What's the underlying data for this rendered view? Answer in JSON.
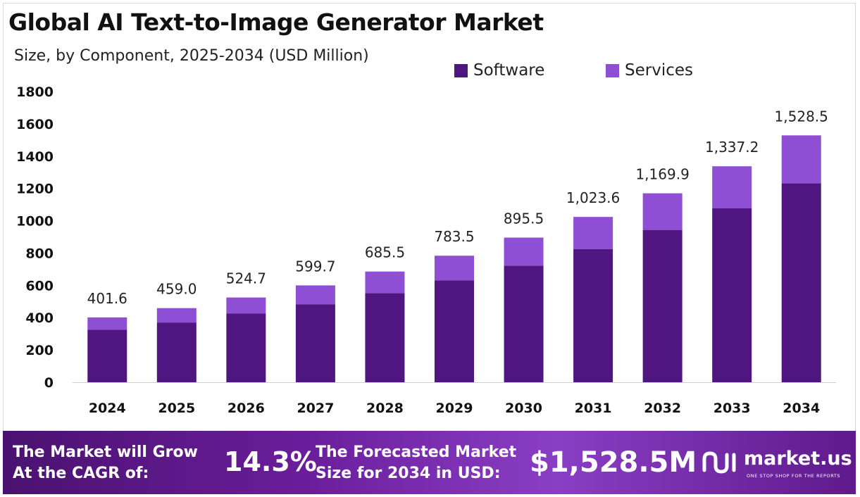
{
  "title": "Global AI Text-to-Image Generator Market",
  "subtitle": "Size, by Component, 2025-2034 (USD Million)",
  "legend": [
    {
      "label": "Software",
      "color": "#4f1580"
    },
    {
      "label": "Services",
      "color": "#8f4fd4"
    }
  ],
  "chart_data": {
    "type": "bar",
    "stacked": true,
    "categories": [
      "2024",
      "2025",
      "2026",
      "2027",
      "2028",
      "2029",
      "2030",
      "2031",
      "2032",
      "2033",
      "2034"
    ],
    "series": [
      {
        "name": "Software",
        "color": "#4f1580",
        "values": [
          325,
          370,
          425,
          483,
          552,
          631,
          722,
          825,
          943,
          1078,
          1232
        ]
      },
      {
        "name": "Services",
        "color": "#8f4fd4",
        "values": [
          76.6,
          89.0,
          99.7,
          116.7,
          133.5,
          152.5,
          173.5,
          198.6,
          226.9,
          259.2,
          296.5
        ]
      }
    ],
    "totals": [
      401.6,
      459.0,
      524.7,
      599.7,
      685.5,
      783.5,
      895.5,
      1023.6,
      1169.9,
      1337.2,
      1528.5
    ],
    "total_labels": [
      "401.6",
      "459.0",
      "524.7",
      "599.7",
      "685.5",
      "783.5",
      "895.5",
      "1,023.6",
      "1,169.9",
      "1,337.2",
      "1,528.5"
    ],
    "y_ticks": [
      "0",
      "200",
      "400",
      "600",
      "800",
      "1000",
      "1200",
      "1400",
      "1600",
      "1800"
    ],
    "ylim": [
      0,
      1800
    ],
    "grid": false,
    "legend_position": "top-right"
  },
  "banner": {
    "cagr_label_line1": "The Market will Grow",
    "cagr_label_line2": "At the CAGR of:",
    "cagr_value": "14.3%",
    "forecast_label_line1": "The Forecasted Market",
    "forecast_label_line2": "Size for 2034 in USD:",
    "forecast_value": "$1,528.5M",
    "brand_name": "market.us",
    "brand_tagline": "ONE STOP SHOP FOR THE REPORTS"
  }
}
